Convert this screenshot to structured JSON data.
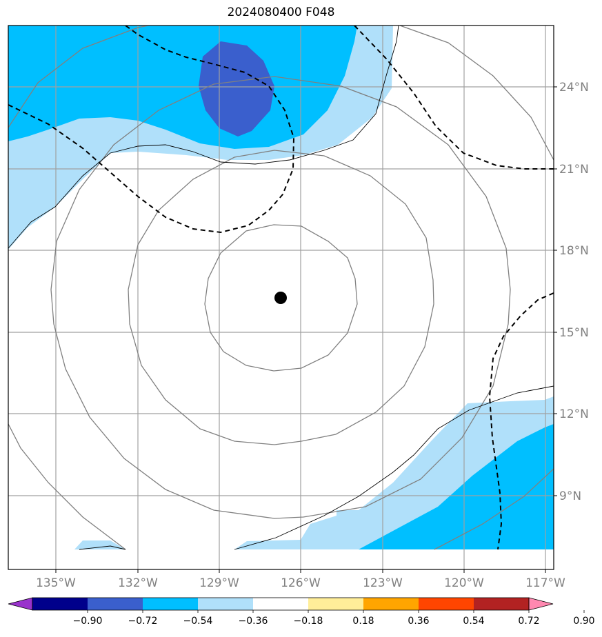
{
  "title": "2024080400 F048",
  "lon_labels": [
    "135°W",
    "132°W",
    "129°W",
    "126°W",
    "123°W",
    "120°W",
    "117°W"
  ],
  "lat_labels": [
    "24°N",
    "21°N",
    "18°N",
    "15°N",
    "12°N",
    "9°N"
  ],
  "colorbar": {
    "tick_labels": [
      "−0.90",
      "−0.72",
      "−0.54",
      "−0.36",
      "−0.18",
      "0.18",
      "0.36",
      "0.54",
      "0.72",
      "0.90"
    ],
    "colors": [
      "#9932cc",
      "#00008b",
      "#3a5fcd",
      "#00bfff",
      "#b0e0fa",
      "#ffffff",
      "#ffee99",
      "#ffa500",
      "#ff4500",
      "#b22222",
      "#ff88b0"
    ]
  },
  "fill_colors": {
    "light_blue": "#b0e0fa",
    "deep_sky_blue": "#00bfff",
    "royal_blue": "#3a5fcd"
  },
  "storm_center_marker": "black-dot",
  "range_rings": 4
}
